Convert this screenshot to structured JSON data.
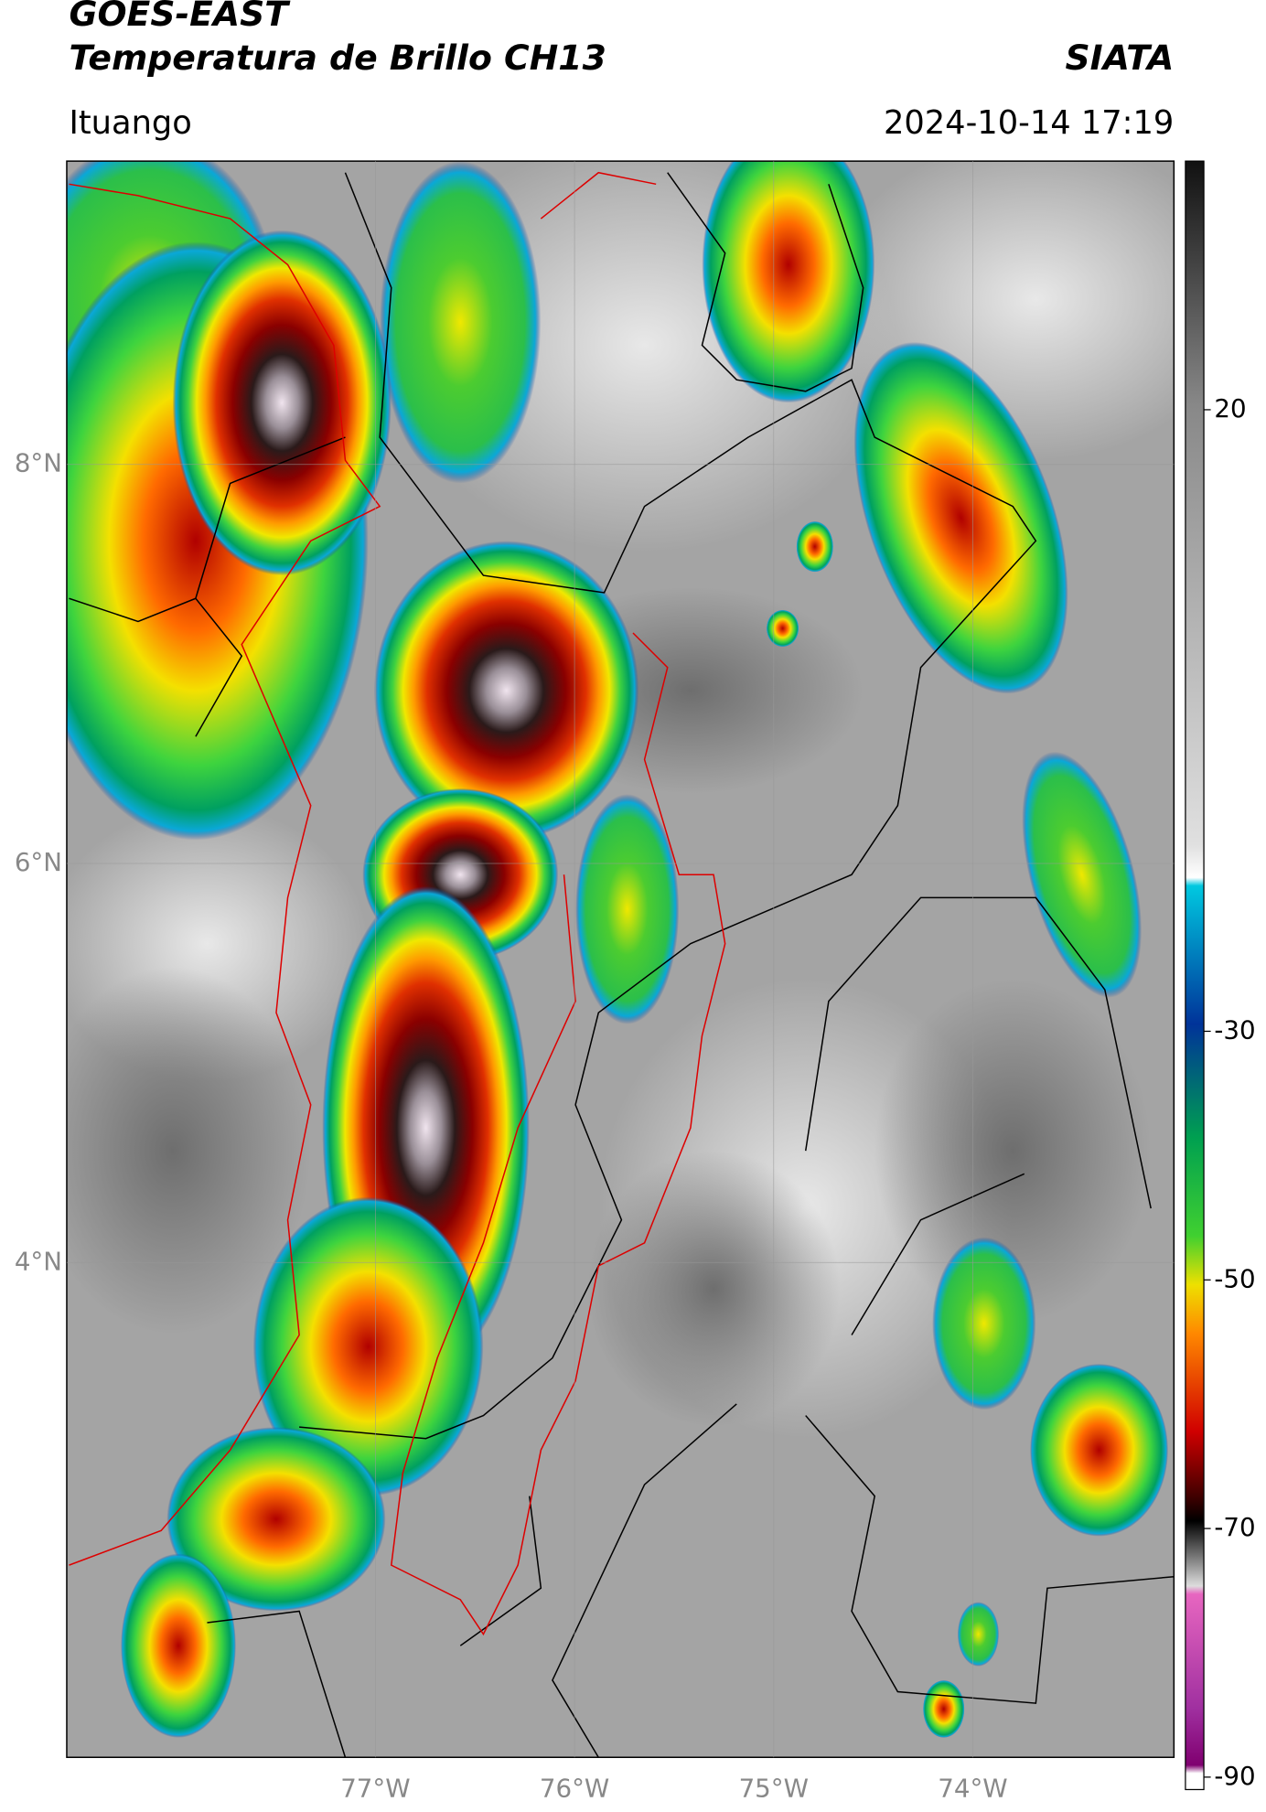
{
  "header": {
    "title": "GOES-EAST",
    "subtitle": "Temperatura de Brillo CH13",
    "source": "SIATA",
    "location": "Ituango",
    "datetime": "2024-10-14 17:19"
  },
  "map": {
    "xlim": [
      -78.55,
      -72.99
    ],
    "ylim": [
      1.52,
      9.52
    ],
    "xticks": [
      {
        "value": -77,
        "label": "77°W"
      },
      {
        "value": -76,
        "label": "76°W"
      },
      {
        "value": -75,
        "label": "75°W"
      },
      {
        "value": -74,
        "label": "74°W"
      }
    ],
    "yticks": [
      {
        "value": 8,
        "label": "8°N"
      },
      {
        "value": 6,
        "label": "6°N"
      },
      {
        "value": 4,
        "label": "4°N"
      }
    ],
    "grid": true
  },
  "colorbar": {
    "lim": [
      -91,
      40
    ],
    "ticks": [
      20,
      -30,
      -50,
      -70,
      -90
    ]
  }
}
